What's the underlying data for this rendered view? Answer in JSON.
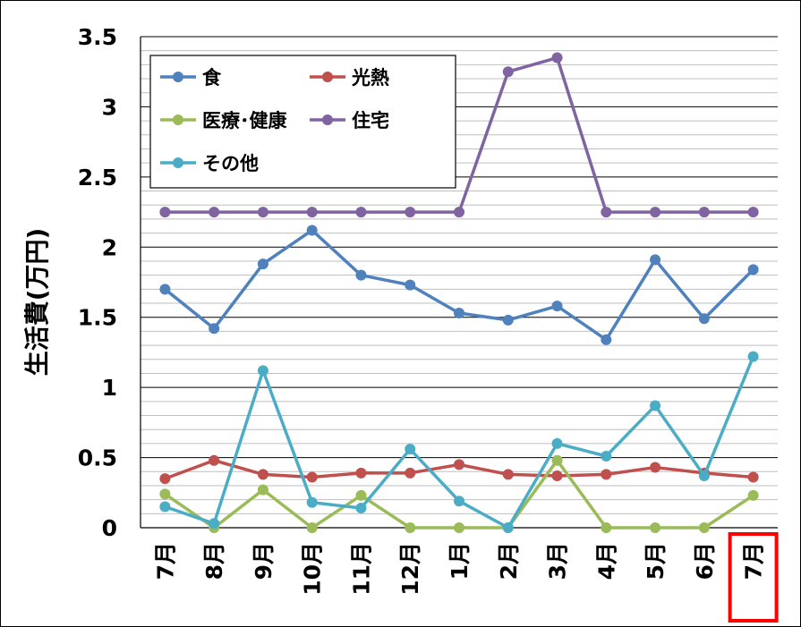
{
  "chart_data": {
    "type": "line",
    "title": "",
    "xlabel": "",
    "ylabel": "生活費(万円)",
    "ylim": [
      0,
      3.5
    ],
    "y_major_step": 0.5,
    "y_minor_step": 0.1,
    "yticks": [
      "0",
      "0.5",
      "1",
      "1.5",
      "2",
      "2.5",
      "3",
      "3.5"
    ],
    "grid": true,
    "legend_position": "top-left",
    "highlighted_category_index": 12,
    "highlight_color": "#ff0000",
    "categories": [
      "7月",
      "8月",
      "9月",
      "10月",
      "11月",
      "12月",
      "1月",
      "2月",
      "3月",
      "4月",
      "5月",
      "6月",
      "7月"
    ],
    "series": [
      {
        "name": "食",
        "color": "#4f81bd",
        "values": [
          1.7,
          1.42,
          1.88,
          2.12,
          1.8,
          1.73,
          1.53,
          1.48,
          1.58,
          1.34,
          1.91,
          1.49,
          1.84
        ]
      },
      {
        "name": "光熱",
        "color": "#c0504d",
        "values": [
          0.35,
          0.48,
          0.38,
          0.36,
          0.39,
          0.39,
          0.45,
          0.38,
          0.37,
          0.38,
          0.43,
          0.39,
          0.36
        ]
      },
      {
        "name": "医療･健康",
        "color": "#9bbb59",
        "values": [
          0.24,
          0.0,
          0.27,
          0.0,
          0.23,
          0.0,
          0.0,
          0.0,
          0.48,
          0.0,
          0.0,
          0.0,
          0.23
        ]
      },
      {
        "name": "住宅",
        "color": "#8064a2",
        "values": [
          2.25,
          2.25,
          2.25,
          2.25,
          2.25,
          2.25,
          2.25,
          3.25,
          3.35,
          2.25,
          2.25,
          2.25,
          2.25
        ]
      },
      {
        "name": "その他",
        "color": "#4bacc6",
        "values": [
          0.15,
          0.03,
          1.12,
          0.18,
          0.14,
          0.56,
          0.19,
          0.0,
          0.6,
          0.51,
          0.87,
          0.37,
          1.22
        ]
      }
    ]
  }
}
